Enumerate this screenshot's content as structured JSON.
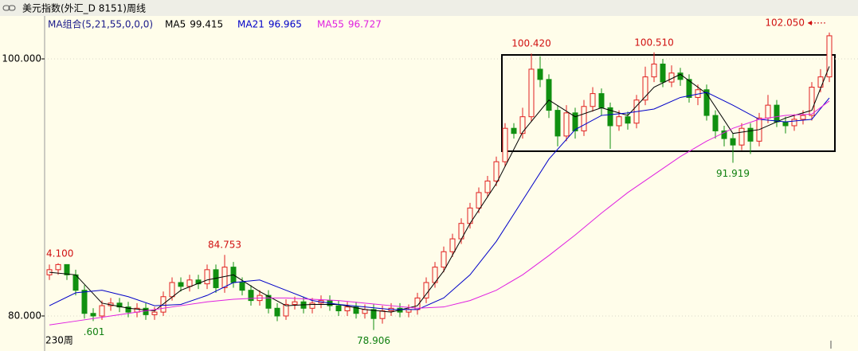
{
  "chart_data": {
    "type": "candlestick",
    "title": "美元指数(外汇_D 8151)周线",
    "legend_title": "MA组合(5,21,55,0,0,0)",
    "period_label": "230周",
    "ylim": [
      77.46,
      103.22
    ],
    "yticks": [
      {
        "value": 80,
        "label": "80.000"
      },
      {
        "value": 100,
        "label": "100.000"
      }
    ],
    "up_color": "#e02020",
    "down_color": "#109010",
    "candles": {
      "open": [
        83.2,
        83.6,
        84.0,
        83.2,
        82.0,
        80.2,
        80.0,
        80.8,
        81.0,
        80.7,
        80.3,
        80.6,
        80.1,
        80.3,
        81.5,
        82.6,
        82.3,
        82.8,
        82.5,
        83.6,
        82.2,
        83.8,
        82.6,
        82.0,
        81.2,
        81.6,
        80.6,
        80.0,
        80.9,
        81.1,
        80.6,
        81.0,
        81.2,
        80.8,
        80.4,
        80.7,
        80.2,
        80.5,
        79.8,
        80.4,
        80.6,
        80.3,
        80.5,
        81.4,
        82.6,
        83.8,
        85.0,
        86.0,
        87.2,
        88.4,
        89.6,
        90.5,
        92.0,
        94.6,
        94.2,
        95.5,
        99.2,
        98.4,
        96.0,
        94.0,
        95.8,
        94.4,
        96.3,
        97.3,
        96.2,
        94.8,
        95.5,
        95.0,
        96.8,
        98.6,
        99.6,
        98.2,
        98.9,
        98.4,
        97.0,
        97.6,
        95.6,
        94.4,
        93.8,
        93.3,
        94.6,
        93.6,
        95.4,
        96.4,
        95.1,
        94.8,
        95.3,
        95.6,
        97.8,
        98.6
      ],
      "high": [
        84.0,
        84.1,
        84.0,
        83.6,
        82.4,
        80.6,
        81.2,
        81.4,
        81.4,
        81.1,
        81.0,
        81.0,
        80.7,
        81.9,
        83.0,
        83.0,
        83.2,
        83.2,
        84.0,
        84.0,
        84.753,
        84.2,
        83.0,
        82.4,
        82.0,
        82.0,
        81.0,
        81.3,
        81.5,
        81.5,
        81.4,
        81.6,
        81.6,
        81.2,
        81.1,
        81.1,
        80.9,
        80.9,
        80.8,
        81.0,
        81.0,
        80.9,
        81.8,
        83.0,
        84.2,
        85.4,
        86.4,
        87.6,
        88.8,
        90.0,
        90.9,
        92.4,
        95.0,
        95.0,
        96.2,
        100.42,
        100.2,
        98.8,
        96.4,
        96.4,
        96.2,
        96.8,
        97.8,
        97.7,
        96.6,
        96.0,
        95.9,
        97.2,
        99.4,
        100.51,
        100.0,
        99.5,
        99.3,
        98.8,
        98.0,
        98.0,
        96.0,
        94.8,
        94.2,
        95.0,
        95.0,
        95.8,
        97.2,
        96.8,
        95.5,
        95.7,
        96.0,
        98.2,
        99.2,
        102.05
      ],
      "low": [
        82.8,
        83.2,
        82.8,
        81.6,
        79.8,
        79.601,
        79.7,
        80.4,
        80.3,
        79.9,
        79.9,
        79.7,
        79.7,
        80.0,
        81.2,
        81.9,
        81.9,
        82.1,
        82.1,
        81.8,
        81.8,
        82.2,
        81.6,
        80.8,
        80.8,
        80.2,
        79.6,
        79.7,
        80.5,
        80.2,
        80.2,
        80.6,
        80.4,
        80.0,
        80.0,
        79.8,
        79.8,
        78.906,
        79.4,
        80.0,
        79.9,
        79.9,
        80.1,
        81.0,
        82.2,
        83.4,
        84.6,
        85.6,
        86.8,
        88.0,
        89.2,
        90.1,
        91.6,
        93.8,
        93.8,
        95.1,
        97.8,
        95.4,
        93.2,
        93.6,
        93.8,
        94.0,
        95.9,
        95.6,
        93.0,
        94.4,
        94.5,
        94.6,
        96.4,
        98.2,
        97.8,
        97.8,
        97.9,
        96.6,
        96.4,
        95.2,
        93.8,
        93.2,
        91.919,
        92.9,
        92.6,
        93.2,
        95.0,
        94.7,
        94.2,
        94.4,
        94.9,
        95.2,
        97.4,
        98.2
      ],
      "close": [
        83.6,
        84.0,
        83.2,
        82.0,
        80.2,
        80.0,
        80.8,
        81.0,
        80.7,
        80.3,
        80.6,
        80.1,
        80.3,
        81.5,
        82.6,
        82.3,
        82.8,
        82.5,
        83.6,
        82.2,
        83.8,
        82.6,
        82.0,
        81.2,
        81.6,
        80.6,
        80.0,
        80.9,
        81.1,
        80.6,
        81.0,
        81.2,
        80.8,
        80.4,
        80.7,
        80.2,
        80.5,
        79.8,
        80.4,
        80.6,
        80.3,
        80.5,
        81.4,
        82.6,
        83.8,
        85.0,
        86.0,
        87.2,
        88.4,
        89.6,
        90.5,
        92.0,
        94.6,
        94.2,
        95.5,
        99.2,
        98.4,
        96.0,
        94.0,
        95.8,
        94.4,
        96.3,
        97.3,
        96.2,
        94.8,
        95.5,
        95.0,
        96.8,
        98.6,
        99.6,
        98.2,
        98.9,
        98.4,
        97.0,
        97.6,
        95.6,
        94.4,
        93.8,
        93.3,
        94.6,
        93.6,
        95.4,
        96.4,
        95.1,
        94.8,
        95.3,
        95.6,
        97.8,
        98.6,
        101.8
      ]
    },
    "series": [
      {
        "name": "MA5",
        "color": "#000000",
        "values": [
          83.4,
          83.2,
          81.0,
          80.6,
          80.4,
          82.0,
          82.8,
          83.2,
          81.9,
          80.8,
          80.9,
          80.9,
          80.5,
          80.3,
          80.8,
          83.5,
          87.2,
          90.3,
          94.3,
          96.8,
          95.5,
          96.2,
          95.6,
          97.8,
          98.8,
          97.3,
          94.2,
          94.5,
          95.4,
          96.0,
          99.415
        ]
      },
      {
        "name": "MA21",
        "color": "#0000c8",
        "values": [
          80.8,
          81.8,
          82.0,
          81.5,
          80.8,
          80.9,
          81.6,
          82.6,
          82.8,
          82.0,
          81.2,
          80.9,
          80.7,
          80.5,
          80.5,
          81.4,
          83.2,
          85.8,
          89.0,
          92.2,
          94.5,
          95.6,
          95.8,
          96.1,
          97.0,
          97.4,
          96.4,
          95.3,
          95.1,
          95.3,
          96.965
        ]
      },
      {
        "name": "MA55",
        "color": "#e020e0",
        "values": [
          79.3,
          79.6,
          79.9,
          80.2,
          80.5,
          80.8,
          81.1,
          81.3,
          81.4,
          81.4,
          81.3,
          81.2,
          81.0,
          80.8,
          80.6,
          80.7,
          81.2,
          82.0,
          83.2,
          84.7,
          86.3,
          88.0,
          89.6,
          91.0,
          92.4,
          93.6,
          94.6,
          95.3,
          95.6,
          95.7,
          96.727
        ]
      }
    ],
    "annotations": [
      "4.100",
      "84.753",
      "100.420",
      "100.510",
      "102.050",
      ".601",
      "78.906",
      "91.919"
    ]
  }
}
